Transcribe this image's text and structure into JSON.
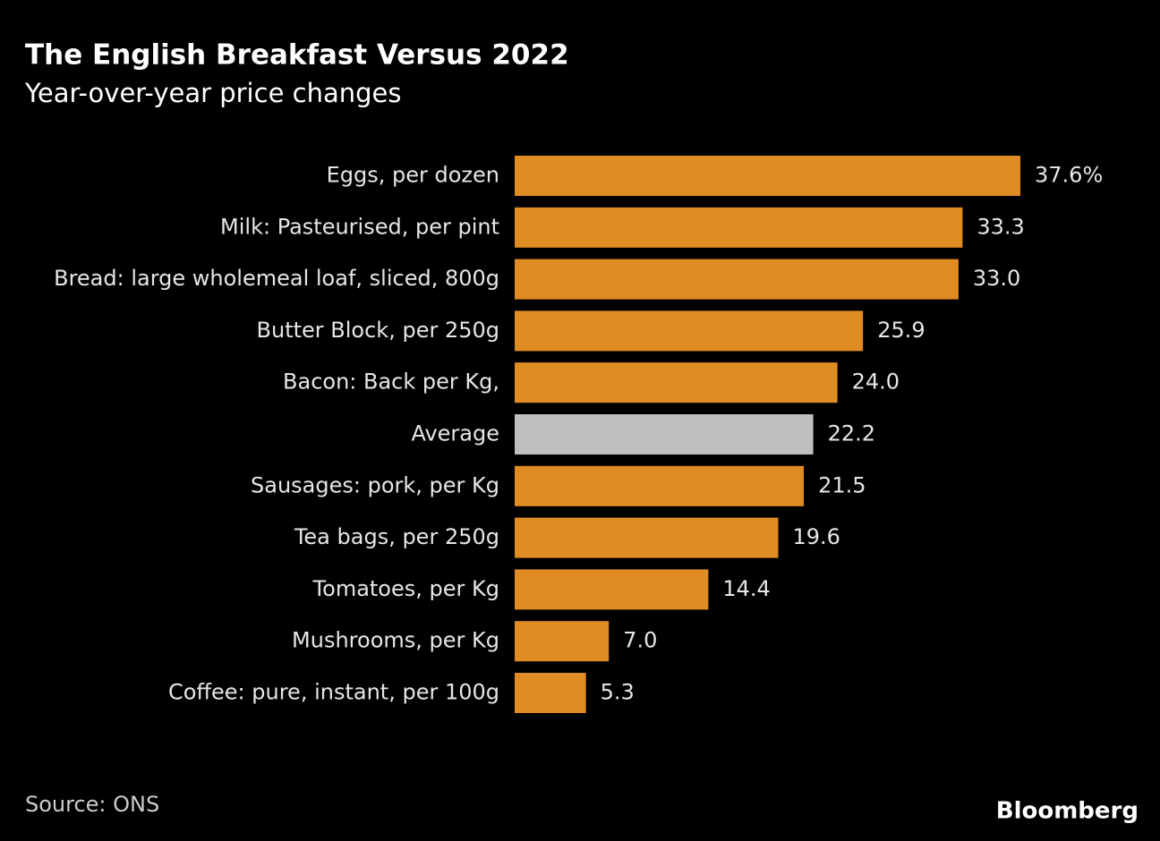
{
  "chart_data": {
    "type": "hbar",
    "title": "The English Breakfast Versus 2022",
    "subtitle": "Year-over-year price changes",
    "categories": [
      "Eggs, per dozen",
      "Milk: Pasteurised, per pint",
      "Bread: large wholemeal loaf, sliced, 800g",
      "Butter Block, per 250g",
      "Bacon: Back per Kg,",
      "Average",
      "Sausages: pork, per Kg",
      "Tea bags, per 250g",
      "Tomatoes, per Kg",
      "Mushrooms, per Kg",
      "Coffee: pure, instant, per 100g"
    ],
    "values": [
      37.6,
      33.3,
      33.0,
      25.9,
      24.0,
      22.2,
      21.5,
      19.6,
      14.4,
      7.0,
      5.3
    ],
    "value_labels": [
      "37.6%",
      "33.3",
      "33.0",
      "25.9",
      "24.0",
      "22.2",
      "21.5",
      "19.6",
      "14.4",
      "7.0",
      "5.3"
    ],
    "colors": [
      "#e08c25",
      "#e08c25",
      "#e08c25",
      "#e08c25",
      "#e08c25",
      "#bfbfbf",
      "#e08c25",
      "#e08c25",
      "#e08c25",
      "#e08c25",
      "#e08c25"
    ],
    "source": "Source: ONS",
    "brand": "Bloomberg"
  }
}
